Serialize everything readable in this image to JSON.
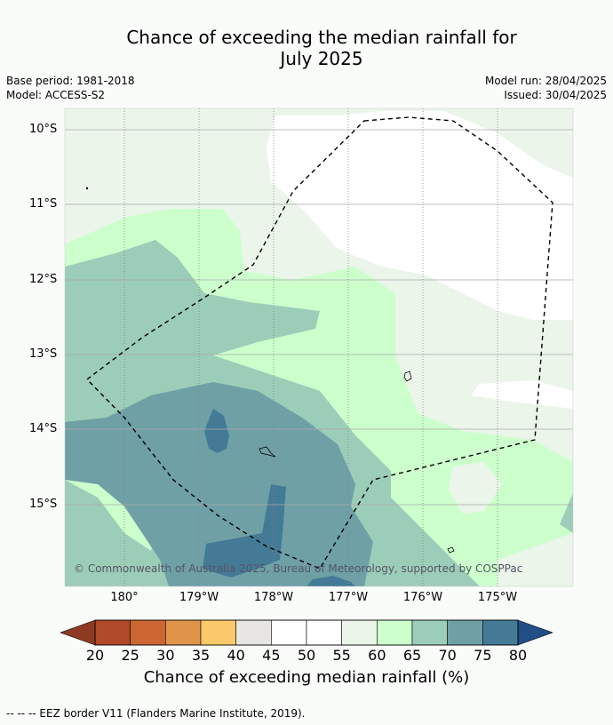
{
  "header": {
    "title_line1": "Chance of exceeding the median rainfall for",
    "title_line2": "July 2025",
    "base_period": "Base period: 1981-2018",
    "model": "Model: ACCESS-S2",
    "model_run": "Model run: 28/04/2025",
    "issued": "Issued: 30/04/2025"
  },
  "map": {
    "lat_labels": [
      "10°S",
      "11°S",
      "12°S",
      "13°S",
      "14°S",
      "15°S"
    ],
    "lon_labels": [
      "180°",
      "179°W",
      "178°W",
      "177°W",
      "176°W",
      "175°W"
    ],
    "copyright": "© Commonwealth of Australia 2025, Bureau of Meteorology, supported by COSPPac"
  },
  "colorbar": {
    "ticks": [
      "20",
      "25",
      "30",
      "35",
      "40",
      "45",
      "50",
      "55",
      "60",
      "65",
      "70",
      "75",
      "80"
    ],
    "colors": [
      "#b04a2b",
      "#cc6633",
      "#e0944a",
      "#fcc96a",
      "#e8e6e2",
      "#ffffff",
      "#ffffff",
      "#ebf5ea",
      "#ccffcc",
      "#9ccdb8",
      "#6ea0a6",
      "#447a96"
    ],
    "under_color": "#8e3a22",
    "over_color": "#1f4f85",
    "title": "Chance of exceeding median rainfall (%)"
  },
  "footnote": "--  --  -- EEZ border V11 (Flanders Marine Institute, 2019)."
}
